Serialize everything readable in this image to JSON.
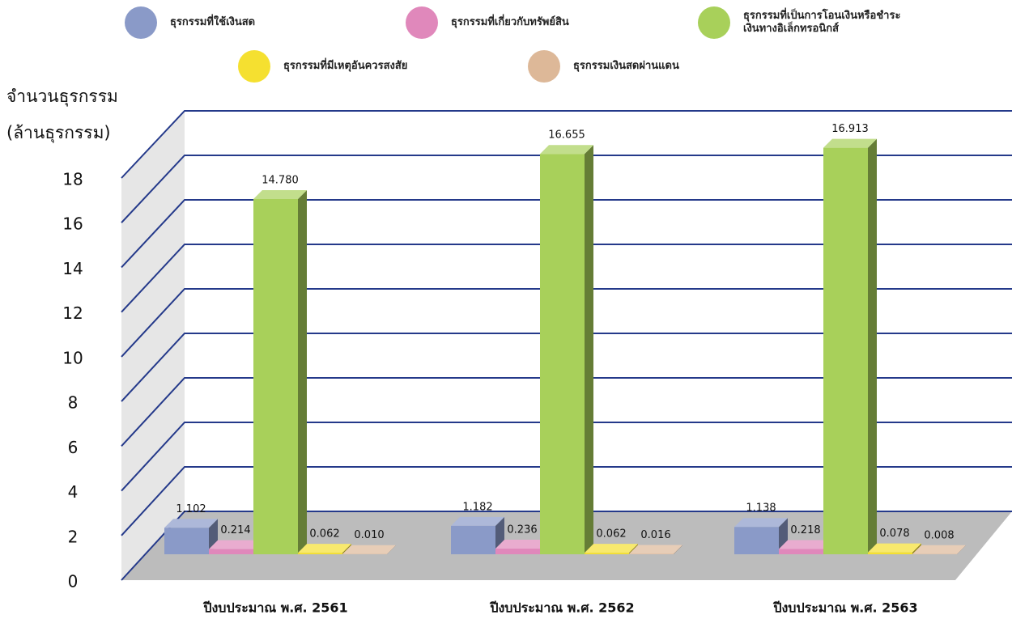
{
  "chart_data": {
    "type": "bar3d",
    "ylabel": [
      "จำนวนธุรกรรม",
      "(ล้านธุรกรรม)"
    ],
    "categories": [
      "ปีงบประมาณ พ.ศ. 2561",
      "ปีงบประมาณ พ.ศ. 2562",
      "ปีงบประมาณ พ.ศ. 2563"
    ],
    "series": [
      {
        "name": "ธุรกรรมที่ใช้เงินสด",
        "color": "#8a9ac8",
        "values": [
          1.102,
          1.182,
          1.138
        ],
        "value_labels": [
          "1.102",
          "1.182",
          "1.138"
        ]
      },
      {
        "name": "ธุรกรรมที่เกี่ยวกับทรัพย์สิน",
        "color": "#e088bb",
        "values": [
          0.214,
          0.236,
          0.218
        ],
        "value_labels": [
          "0.214",
          "0.236",
          "0.218"
        ]
      },
      {
        "name": "ธุรกรรมที่เป็นการโอนเงินหรือชำระเงินทางอิเล็กทรอนิกส์",
        "color": "#a8d05a",
        "values": [
          14.78,
          16.655,
          16.913
        ],
        "value_labels": [
          "14.780",
          "16.655",
          "16.913"
        ]
      },
      {
        "name": "ธุรกรรมที่มีเหตุอันควรสงสัย",
        "color": "#f5e030",
        "values": [
          0.062,
          0.062,
          0.078
        ],
        "value_labels": [
          "0.062",
          "0.062",
          "0.078"
        ]
      },
      {
        "name": "ธุรกรรมเงินสดผ่านแดน",
        "color": "#ddb898",
        "values": [
          0.01,
          0.016,
          0.008
        ],
        "value_labels": [
          "0.010",
          "0.016",
          "0.008"
        ]
      }
    ],
    "ylim": [
      0,
      18
    ],
    "yticks": [
      0,
      2,
      4,
      6,
      8,
      10,
      12,
      14,
      16,
      18
    ],
    "grid": true
  }
}
